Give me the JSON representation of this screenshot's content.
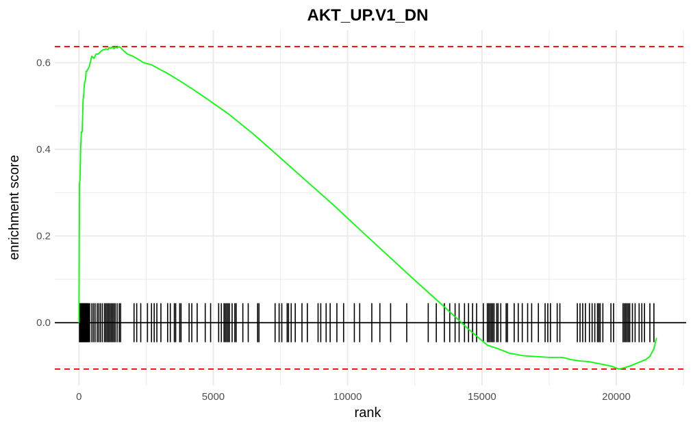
{
  "chart_data": {
    "type": "line",
    "title": "AKT_UP.V1_DN",
    "xlabel": "rank",
    "ylabel": "enrichment score",
    "xlim": [
      -900,
      22600
    ],
    "ylim": [
      -0.145,
      0.675
    ],
    "x_ticks": [
      0,
      5000,
      10000,
      15000,
      20000
    ],
    "x_tick_labels": [
      "0",
      "5000",
      "10000",
      "15000",
      "20000"
    ],
    "y_ticks": [
      0.0,
      0.2,
      0.4,
      0.6
    ],
    "y_tick_labels": [
      "0.0",
      "0.2",
      "0.4",
      "0.6"
    ],
    "grid": true,
    "legend": "none",
    "colors": {
      "curve": "#00ff00",
      "bounds": "#ff0000",
      "hits": "#000000",
      "zero_line": "#000000",
      "grid": "#ebebeb"
    },
    "max_es": 0.637,
    "min_es": -0.107,
    "hit_band": [
      -0.045,
      0.045
    ],
    "series": [
      {
        "x": [
          0,
          20,
          40,
          60,
          90,
          120,
          150,
          180,
          200,
          240,
          270,
          300,
          330,
          380,
          420,
          480,
          560,
          640,
          720,
          800,
          900,
          960,
          1000,
          1080,
          1120,
          1180,
          1240,
          1300,
          1360,
          1420,
          1480,
          1550,
          1650,
          1800,
          2000,
          2200,
          2400,
          2700,
          3000,
          3300,
          3700,
          4200,
          4800,
          5600,
          6500,
          7500,
          8500,
          9500,
          10500,
          11500,
          12500,
          13500,
          14500,
          15200,
          15600,
          16000,
          16500,
          17000,
          17500,
          18000,
          18300,
          18600,
          19000,
          19400,
          19800,
          20100,
          20300,
          20500,
          20700,
          20900,
          21100,
          21250,
          21400,
          21500
        ],
        "y": [
          0.0,
          0.32,
          0.33,
          0.4,
          0.44,
          0.44,
          0.51,
          0.53,
          0.55,
          0.56,
          0.58,
          0.58,
          0.585,
          0.59,
          0.6,
          0.615,
          0.61,
          0.62,
          0.62,
          0.625,
          0.63,
          0.63,
          0.632,
          0.63,
          0.635,
          0.633,
          0.637,
          0.632,
          0.636,
          0.634,
          0.637,
          0.635,
          0.628,
          0.62,
          0.615,
          0.608,
          0.6,
          0.595,
          0.585,
          0.575,
          0.56,
          0.54,
          0.515,
          0.48,
          0.435,
          0.38,
          0.325,
          0.27,
          0.212,
          0.155,
          0.098,
          0.042,
          -0.015,
          -0.052,
          -0.06,
          -0.07,
          -0.076,
          -0.078,
          -0.08,
          -0.08,
          -0.085,
          -0.088,
          -0.09,
          -0.095,
          -0.1,
          -0.107,
          -0.104,
          -0.1,
          -0.095,
          -0.09,
          -0.085,
          -0.078,
          -0.06,
          -0.035
        ]
      }
    ],
    "hits": [
      20,
      40,
      60,
      90,
      110,
      130,
      160,
      180,
      200,
      220,
      250,
      270,
      300,
      330,
      360,
      400,
      480,
      540,
      600,
      680,
      740,
      800,
      870,
      950,
      1000,
      1050,
      1100,
      1150,
      1200,
      1250,
      1300,
      1350,
      1420,
      1500,
      1550,
      2050,
      2150,
      2300,
      2550,
      2700,
      2800,
      2900,
      3050,
      3300,
      3400,
      3550,
      3600,
      3750,
      3800,
      4100,
      4200,
      4400,
      4700,
      4900,
      5200,
      5300,
      5400,
      5450,
      5500,
      5550,
      5600,
      5700,
      5800,
      5850,
      6100,
      6300,
      6650,
      6700,
      7300,
      7450,
      7550,
      7750,
      7800,
      7900,
      8050,
      8300,
      8500,
      8900,
      9000,
      9200,
      9350,
      9600,
      9850,
      10250,
      10450,
      10900,
      11200,
      11600,
      12200,
      13000,
      13300,
      13600,
      13800,
      14000,
      14150,
      14350,
      14500,
      14650,
      14800,
      15050,
      15200,
      15250,
      15300,
      15350,
      15400,
      15450,
      15550,
      15600,
      15700,
      15900,
      15950,
      16200,
      16350,
      16500,
      16700,
      16850,
      17100,
      17350,
      17450,
      17550,
      17800,
      17900,
      18550,
      18650,
      18750,
      18850,
      19000,
      19100,
      19200,
      19300,
      19350,
      19400,
      19500,
      19800,
      19900,
      20250,
      20300,
      20350,
      20400,
      20450,
      20500,
      20600,
      20700,
      20850,
      20950,
      21050,
      21250,
      21400
    ]
  }
}
